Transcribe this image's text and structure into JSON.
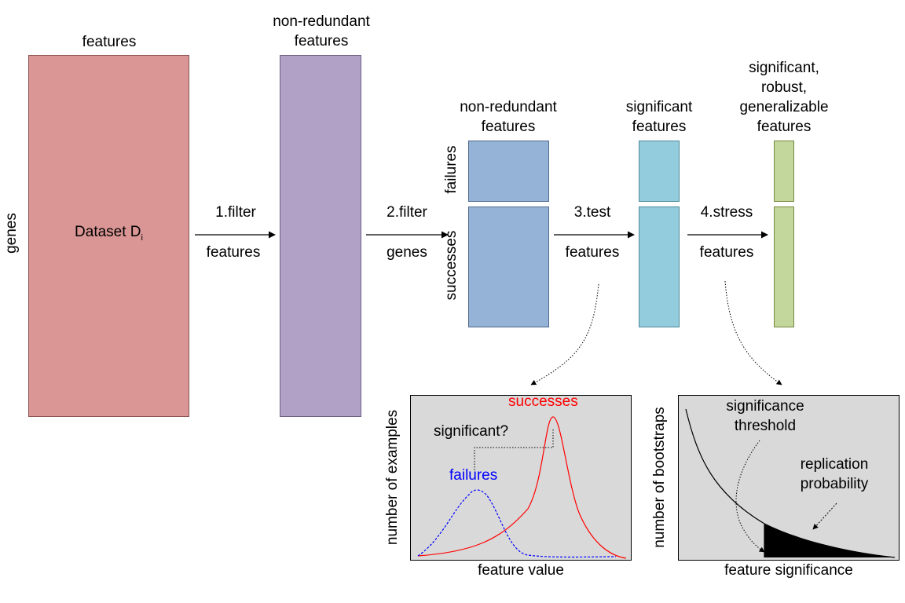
{
  "dataset": {
    "top_label": "features",
    "side_label": "genes",
    "name": "Dataset D",
    "subscript": "i",
    "color": "#d99694"
  },
  "stage2": {
    "title": [
      "non-redundant",
      "features"
    ],
    "color": "#b1a1c7"
  },
  "stage3": {
    "title": [
      "non-redundant",
      "features"
    ],
    "color": "#95b3d7",
    "row_labels": {
      "top": "failures",
      "bottom": "successes"
    }
  },
  "stage4": {
    "title": [
      "significant",
      "features"
    ],
    "color": "#93cddd"
  },
  "stage5": {
    "title": [
      "significant,",
      "robust,",
      "generalizable",
      "features"
    ],
    "color": "#c3d69b"
  },
  "steps": [
    {
      "top": "1.filter",
      "bottom": "features"
    },
    {
      "top": "2.filter",
      "bottom": "genes"
    },
    {
      "top": "3.test",
      "bottom": "features"
    },
    {
      "top": "4.stress",
      "bottom": "features"
    }
  ],
  "test_plot": {
    "xlabel": "feature value",
    "ylabel": "number  of examples",
    "successes_label": "successes",
    "failures_label": "failures",
    "question": "significant?",
    "successes_color": "#ff0000",
    "failures_color": "#0000ff",
    "background": "#d9d9d9"
  },
  "stress_plot": {
    "xlabel": "feature significance",
    "ylabel": "number  of bootstraps",
    "threshold_label": [
      "significance",
      "threshold"
    ],
    "replication_label": [
      "replication",
      "probability"
    ],
    "background": "#d9d9d9"
  }
}
